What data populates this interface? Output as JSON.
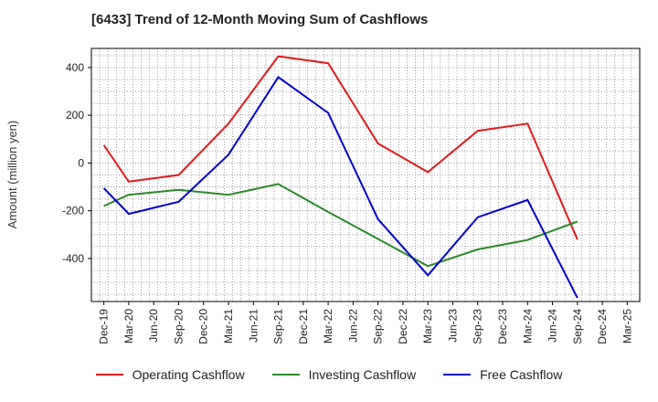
{
  "chart_data": {
    "type": "line",
    "title": "[6433]  Trend of 12-Month Moving Sum of Cashflows",
    "xlabel": "",
    "ylabel": "Amount (million yen)",
    "categories": [
      "Dec-19",
      "Mar-20",
      "Jun-20",
      "Sep-20",
      "Dec-20",
      "Mar-21",
      "Jun-21",
      "Sep-21",
      "Dec-21",
      "Mar-22",
      "Jun-22",
      "Sep-22",
      "Dec-22",
      "Mar-23",
      "Jun-23",
      "Sep-23",
      "Dec-23",
      "Mar-24",
      "Jun-24",
      "Sep-24",
      "Dec-24",
      "Mar-25"
    ],
    "ylim": [
      -580,
      480
    ],
    "yticks": [
      400,
      200,
      0,
      -200,
      -400
    ],
    "ytick_labels": [
      "400",
      "200",
      "0",
      "-200",
      "-400"
    ],
    "grid": true,
    "legend_position": "bottom",
    "series": [
      {
        "name": "Operating Cashflow",
        "color": "#e31a1c",
        "x": [
          "Dec-19",
          "Mar-20",
          "Sep-20",
          "Mar-21",
          "Sep-21",
          "Mar-22",
          "Sep-22",
          "Mar-23",
          "Sep-23",
          "Mar-24",
          "Sep-24"
        ],
        "values": [
          75,
          -78,
          -50,
          165,
          447,
          418,
          82,
          -38,
          135,
          165,
          -320
        ]
      },
      {
        "name": "Investing Cashflow",
        "color": "#2a8a2a",
        "x": [
          "Dec-19",
          "Mar-20",
          "Sep-20",
          "Mar-21",
          "Sep-21",
          "Mar-22",
          "Sep-22",
          "Mar-23",
          "Sep-23",
          "Mar-24",
          "Sep-24"
        ],
        "values": [
          -180,
          -133,
          -112,
          -133,
          -88,
          -205,
          -318,
          -432,
          -362,
          -322,
          -245
        ]
      },
      {
        "name": "Free Cashflow",
        "color": "#0000cc",
        "x": [
          "Dec-19",
          "Mar-20",
          "Sep-20",
          "Mar-21",
          "Sep-21",
          "Mar-22",
          "Sep-22",
          "Mar-23",
          "Sep-23",
          "Mar-24",
          "Sep-24"
        ],
        "values": [
          -105,
          -213,
          -162,
          35,
          360,
          210,
          -235,
          -470,
          -227,
          -155,
          -565
        ]
      }
    ]
  }
}
